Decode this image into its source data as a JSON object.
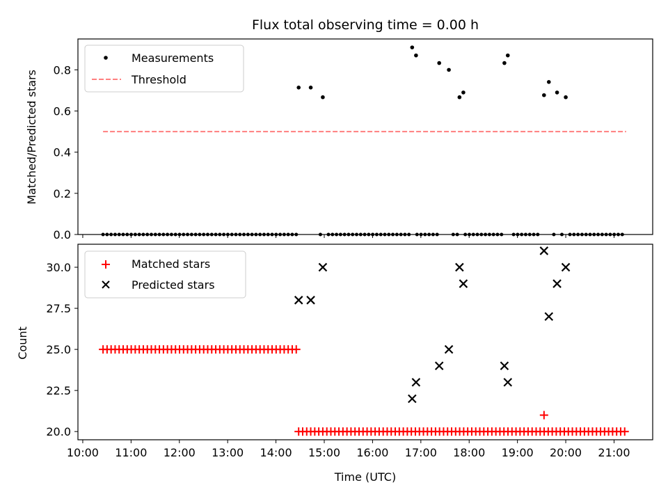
{
  "chart_data": [
    {
      "type": "scatter",
      "title": "Flux total observing time = 0.00 h",
      "xlabel": "",
      "ylabel": "Matched/Predicted stars",
      "ylim": [
        0,
        0.95
      ],
      "yticks": [
        "0.0",
        "0.2",
        "0.4",
        "0.6",
        "0.8"
      ],
      "grid": false,
      "legend_position": "top-left",
      "series": [
        {
          "name": "Measurements",
          "marker": "dot",
          "color": "#000000",
          "x": [
            16.82,
            16.9,
            17.38,
            17.58,
            17.8,
            17.88,
            18.73,
            18.8,
            19.55,
            19.65,
            19.82,
            20.0
          ],
          "y": [
            0.909,
            0.87,
            0.833,
            0.8,
            0.667,
            0.69,
            0.833,
            0.87,
            0.677,
            0.741,
            0.69,
            0.667
          ],
          "zeros_x_range": [
            10.42,
            21.25
          ],
          "zeros_gaps": [
            [
              14.45,
              14.85
            ],
            [
              14.93,
              15.05
            ],
            [
              16.82,
              16.92
            ],
            [
              17.35,
              17.65
            ],
            [
              17.78,
              17.92
            ],
            [
              18.7,
              18.85
            ],
            [
              19.5,
              19.7
            ],
            [
              19.78,
              19.88
            ],
            [
              19.97,
              20.05
            ]
          ]
        },
        {
          "name": "Threshold",
          "marker": "dashed-line",
          "color": "#ff7f7f",
          "x": [
            10.42,
            21.25
          ],
          "y": [
            0.5,
            0.5
          ]
        }
      ],
      "extra_points": {
        "x": [
          14.47,
          14.72,
          14.97
        ],
        "y": [
          0.714,
          0.714,
          0.667
        ]
      }
    },
    {
      "type": "scatter",
      "title": "",
      "xlabel": "Time (UTC)",
      "ylabel": "Count",
      "ylim": [
        19.5,
        31.4
      ],
      "yticks": [
        "20.0",
        "22.5",
        "25.0",
        "27.5",
        "30.0"
      ],
      "xlim": [
        9.9,
        21.8
      ],
      "xticks": [
        "10:00",
        "11:00",
        "12:00",
        "13:00",
        "14:00",
        "15:00",
        "16:00",
        "17:00",
        "18:00",
        "19:00",
        "20:00",
        "21:00"
      ],
      "grid": false,
      "legend_position": "top-left",
      "series": [
        {
          "name": "Matched stars",
          "marker": "plus",
          "color": "#ff0000",
          "segments": [
            {
              "x_start": 10.42,
              "x_end": 14.42,
              "y": 25
            },
            {
              "x_start": 14.47,
              "x_end": 21.25,
              "y": 20
            }
          ],
          "extra": {
            "x": [
              19.55
            ],
            "y": [
              21
            ]
          }
        },
        {
          "name": "Predicted stars",
          "marker": "x",
          "color": "#000000",
          "x": [
            14.47,
            14.72,
            14.97,
            16.82,
            16.9,
            17.38,
            17.58,
            17.8,
            17.88,
            18.73,
            18.8,
            19.55,
            19.65,
            19.82,
            20.0
          ],
          "y": [
            28,
            28,
            30,
            22,
            23,
            24,
            25,
            30,
            29,
            24,
            23,
            31,
            27,
            29,
            30
          ]
        }
      ]
    }
  ]
}
